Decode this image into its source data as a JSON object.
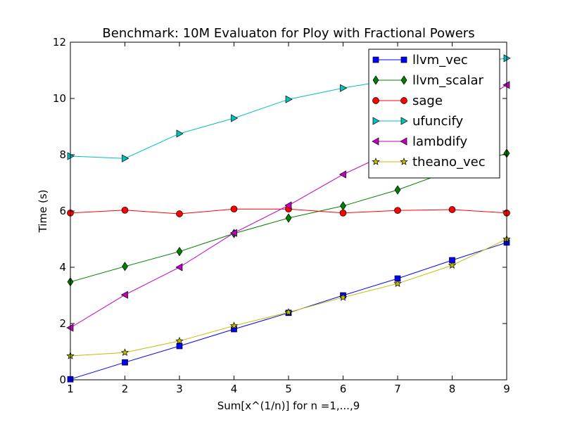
{
  "chart_data": {
    "type": "line",
    "title": "Benchmark: 10M Evaluaton for Ploy with Fractional Powers",
    "xlabel": "Sum[x^(1/n)] for n =1,...,9",
    "ylabel": "Time (s)",
    "xlim": [
      1,
      9
    ],
    "ylim": [
      0,
      12
    ],
    "xticks": [
      "1",
      "2",
      "3",
      "4",
      "5",
      "6",
      "7",
      "8",
      "9"
    ],
    "yticks": [
      "0",
      "2",
      "4",
      "6",
      "8",
      "10",
      "12"
    ],
    "grid": false,
    "legend_position": "upper-right",
    "x": [
      1,
      2,
      3,
      4,
      5,
      6,
      7,
      8,
      9
    ],
    "series": [
      {
        "name": "llvm_vec",
        "color": "#0000ff",
        "marker": "square",
        "values": [
          0.02,
          0.62,
          1.2,
          1.8,
          2.38,
          3.0,
          3.6,
          4.25,
          4.88
        ]
      },
      {
        "name": "llvm_scalar",
        "color": "#008000",
        "marker": "thin-diamond",
        "values": [
          3.48,
          4.03,
          4.56,
          5.2,
          5.75,
          6.18,
          6.75,
          7.45,
          8.05
        ]
      },
      {
        "name": "sage",
        "color": "#ff0000",
        "marker": "circle",
        "values": [
          5.93,
          6.03,
          5.9,
          6.07,
          6.07,
          5.93,
          6.02,
          6.05,
          5.93
        ]
      },
      {
        "name": "ufuncify",
        "color": "#00bfbf",
        "marker": "triangle-right",
        "values": [
          7.95,
          7.87,
          8.75,
          9.3,
          9.97,
          10.37,
          10.7,
          11.15,
          11.43
        ]
      },
      {
        "name": "lambdify",
        "color": "#bf00bf",
        "marker": "triangle-left",
        "values": [
          1.85,
          3.02,
          4.0,
          5.22,
          6.2,
          7.3,
          8.2,
          9.3,
          10.48
        ]
      },
      {
        "name": "theano_vec",
        "color": "#bfbf00",
        "marker": "star",
        "values": [
          0.85,
          0.97,
          1.38,
          1.92,
          2.4,
          2.93,
          3.42,
          4.07,
          5.0
        ]
      }
    ]
  }
}
